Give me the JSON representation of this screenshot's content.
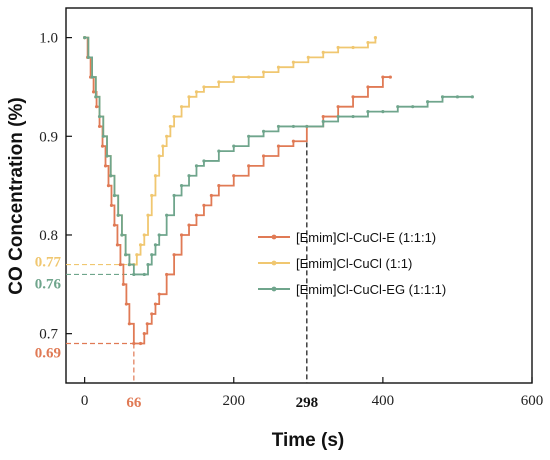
{
  "chart_data": {
    "type": "line",
    "xlabel": "Time (s)",
    "ylabel": "CO Concentration (%)",
    "xlim": [
      -25,
      600
    ],
    "ylim": [
      0.65,
      1.03
    ],
    "x_ticks": [
      "0",
      "200",
      "400",
      "600"
    ],
    "y_ticks": [
      "0.7",
      "0.8",
      "0.9",
      "1.0"
    ],
    "legend_position": "center-right",
    "series": [
      {
        "name": "[Emim]Cl-CuCl-E (1:1:1)",
        "color": "#e07a55",
        "points": [
          [
            0,
            1.0
          ],
          [
            4,
            0.98
          ],
          [
            8,
            0.96
          ],
          [
            12,
            0.945
          ],
          [
            16,
            0.93
          ],
          [
            20,
            0.91
          ],
          [
            24,
            0.89
          ],
          [
            28,
            0.87
          ],
          [
            32,
            0.85
          ],
          [
            36,
            0.83
          ],
          [
            40,
            0.81
          ],
          [
            44,
            0.79
          ],
          [
            48,
            0.77
          ],
          [
            52,
            0.75
          ],
          [
            56,
            0.73
          ],
          [
            60,
            0.71
          ],
          [
            66,
            0.69
          ],
          [
            75,
            0.69
          ],
          [
            80,
            0.7
          ],
          [
            84,
            0.71
          ],
          [
            90,
            0.72
          ],
          [
            95,
            0.73
          ],
          [
            100,
            0.74
          ],
          [
            110,
            0.76
          ],
          [
            120,
            0.78
          ],
          [
            130,
            0.8
          ],
          [
            140,
            0.81
          ],
          [
            150,
            0.82
          ],
          [
            160,
            0.83
          ],
          [
            170,
            0.84
          ],
          [
            180,
            0.85
          ],
          [
            200,
            0.86
          ],
          [
            220,
            0.87
          ],
          [
            240,
            0.88
          ],
          [
            260,
            0.89
          ],
          [
            280,
            0.895
          ],
          [
            298,
            0.91
          ],
          [
            320,
            0.92
          ],
          [
            340,
            0.93
          ],
          [
            360,
            0.94
          ],
          [
            380,
            0.95
          ],
          [
            400,
            0.96
          ],
          [
            410,
            0.96
          ]
        ]
      },
      {
        "name": "[Emim]Cl-CuCl (1:1)",
        "color": "#f0c770",
        "points": [
          [
            0,
            1.0
          ],
          [
            5,
            0.98
          ],
          [
            10,
            0.96
          ],
          [
            15,
            0.94
          ],
          [
            20,
            0.92
          ],
          [
            25,
            0.9
          ],
          [
            30,
            0.88
          ],
          [
            35,
            0.86
          ],
          [
            40,
            0.84
          ],
          [
            45,
            0.82
          ],
          [
            50,
            0.8
          ],
          [
            55,
            0.78
          ],
          [
            60,
            0.77
          ],
          [
            66,
            0.77
          ],
          [
            70,
            0.78
          ],
          [
            75,
            0.79
          ],
          [
            80,
            0.8
          ],
          [
            85,
            0.82
          ],
          [
            90,
            0.84
          ],
          [
            95,
            0.86
          ],
          [
            100,
            0.88
          ],
          [
            105,
            0.89
          ],
          [
            110,
            0.9
          ],
          [
            115,
            0.91
          ],
          [
            120,
            0.92
          ],
          [
            130,
            0.93
          ],
          [
            140,
            0.94
          ],
          [
            150,
            0.945
          ],
          [
            160,
            0.95
          ],
          [
            180,
            0.955
          ],
          [
            200,
            0.96
          ],
          [
            220,
            0.96
          ],
          [
            240,
            0.965
          ],
          [
            260,
            0.97
          ],
          [
            280,
            0.975
          ],
          [
            300,
            0.98
          ],
          [
            320,
            0.985
          ],
          [
            340,
            0.99
          ],
          [
            360,
            0.99
          ],
          [
            380,
            0.995
          ],
          [
            390,
            1.0
          ]
        ]
      },
      {
        "name": "[Emim]Cl-CuCl-EG (1:1:1)",
        "color": "#6fa58c",
        "points": [
          [
            0,
            1.0
          ],
          [
            5,
            0.98
          ],
          [
            10,
            0.96
          ],
          [
            15,
            0.94
          ],
          [
            20,
            0.92
          ],
          [
            25,
            0.9
          ],
          [
            30,
            0.88
          ],
          [
            35,
            0.86
          ],
          [
            40,
            0.84
          ],
          [
            45,
            0.82
          ],
          [
            50,
            0.8
          ],
          [
            55,
            0.78
          ],
          [
            60,
            0.77
          ],
          [
            66,
            0.76
          ],
          [
            80,
            0.76
          ],
          [
            85,
            0.77
          ],
          [
            90,
            0.78
          ],
          [
            95,
            0.79
          ],
          [
            100,
            0.8
          ],
          [
            110,
            0.82
          ],
          [
            120,
            0.84
          ],
          [
            130,
            0.85
          ],
          [
            140,
            0.86
          ],
          [
            150,
            0.87
          ],
          [
            160,
            0.875
          ],
          [
            180,
            0.885
          ],
          [
            200,
            0.89
          ],
          [
            220,
            0.9
          ],
          [
            240,
            0.905
          ],
          [
            260,
            0.91
          ],
          [
            280,
            0.91
          ],
          [
            298,
            0.91
          ],
          [
            320,
            0.915
          ],
          [
            340,
            0.92
          ],
          [
            360,
            0.92
          ],
          [
            380,
            0.925
          ],
          [
            400,
            0.925
          ],
          [
            420,
            0.93
          ],
          [
            440,
            0.93
          ],
          [
            460,
            0.935
          ],
          [
            480,
            0.94
          ],
          [
            500,
            0.94
          ],
          [
            520,
            0.94
          ]
        ]
      }
    ],
    "annotations": [
      {
        "label": "0.77",
        "x": 66,
        "y": 0.77,
        "color": "#f0c770"
      },
      {
        "label": "0.76",
        "x": 66,
        "y": 0.76,
        "color": "#6fa58c"
      },
      {
        "label": "0.69",
        "x": 66,
        "y": 0.69,
        "color": "#e07a55"
      },
      {
        "label": "66",
        "x": 66,
        "y": 0.69,
        "color": "#e07a55"
      },
      {
        "label": "298",
        "x": 298,
        "y": 0.91,
        "color": "#111111"
      }
    ]
  }
}
